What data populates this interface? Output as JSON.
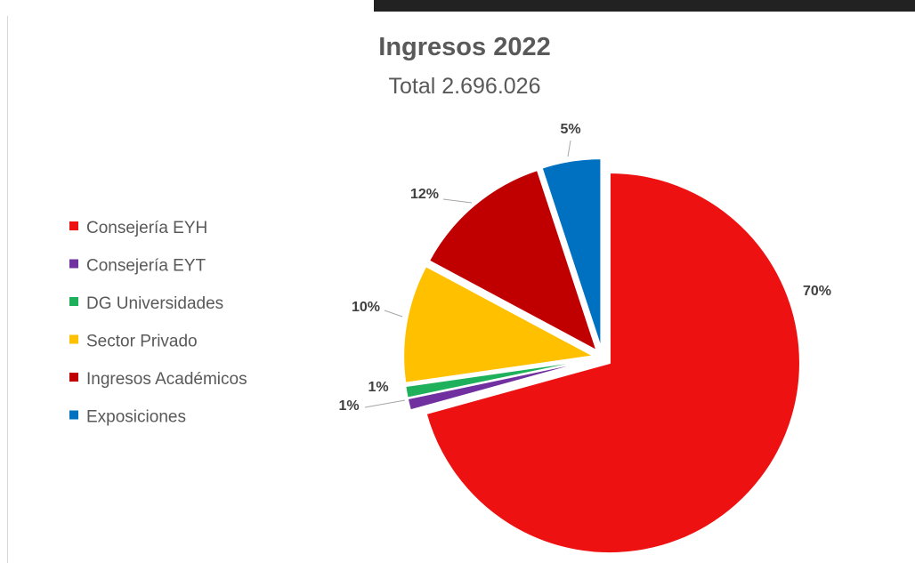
{
  "chart_data": {
    "type": "pie",
    "title": "Ingresos 2022",
    "subtitle": "Total 2.696.026",
    "categories": [
      "Consejería EYH",
      "Consejería EYT",
      "DG Universidades",
      "Sector Privado",
      "Ingresos Académicos",
      "Exposiciones"
    ],
    "values": [
      70,
      1,
      1,
      10,
      12,
      5
    ],
    "labels": [
      "70%",
      "1%",
      "1%",
      "10%",
      "12%",
      "5%"
    ],
    "colors": [
      "#ee1111",
      "#7030a0",
      "#1eb05a",
      "#ffc000",
      "#c00000",
      "#0070c0"
    ],
    "legend_position": "left",
    "exploded": true
  }
}
